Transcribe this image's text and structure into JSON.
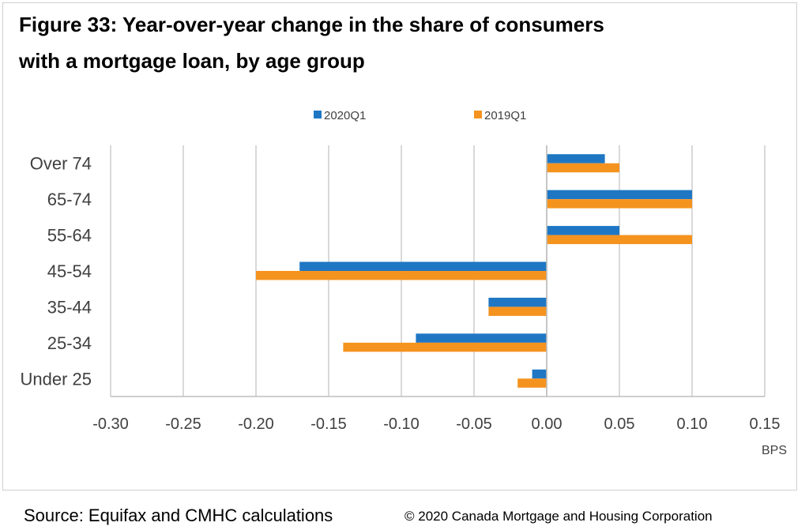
{
  "title": {
    "line1": "Figure 33: Year-over-year change in the share of consumers",
    "line2": "with a mortgage loan, by age group"
  },
  "footer": {
    "source": "Source: Equifax and CMHC calculations",
    "copyright": "© 2020 Canada Mortgage and Housing Corporation"
  },
  "colors": {
    "series_2020": "#1f77c4",
    "series_2019": "#f5931f",
    "grid": "#d9d9d9",
    "axis": "#bfbfbf"
  },
  "chart_data": {
    "type": "bar",
    "orientation": "horizontal",
    "categories": [
      "Over 74",
      "65-74",
      "55-64",
      "45-54",
      "35-44",
      "25-34",
      "Under 25"
    ],
    "series": [
      {
        "name": "2020Q1",
        "values": [
          0.04,
          0.1,
          0.05,
          -0.17,
          -0.04,
          -0.09,
          -0.01
        ]
      },
      {
        "name": "2019Q1",
        "values": [
          0.05,
          0.1,
          0.1,
          -0.2,
          -0.04,
          -0.14,
          -0.02
        ]
      }
    ],
    "xlim": [
      -0.3,
      0.15
    ],
    "xticks": [
      "-0.30",
      "-0.25",
      "-0.20",
      "-0.15",
      "-0.10",
      "-0.05",
      "0.00",
      "0.05",
      "0.10",
      "0.15"
    ],
    "xtick_values": [
      -0.3,
      -0.25,
      -0.2,
      -0.15,
      -0.1,
      -0.05,
      0.0,
      0.05,
      0.1,
      0.15
    ],
    "xlabel": "BPS",
    "grid": true,
    "legend_position": "top"
  }
}
